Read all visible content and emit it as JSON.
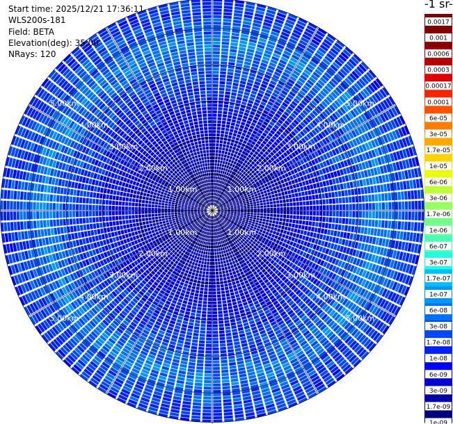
{
  "header": {
    "start_time": "Start time: 2025/12/21 17:36:11",
    "instrument": "WLS200s-181",
    "field": "Field: BETA",
    "elevation": "Elevation(deg): 35.00",
    "nrays": "NRays: 120"
  },
  "colorbar": {
    "title": "-1 sr-",
    "colors": [
      "#00007f",
      "#0000a8",
      "#0000d4",
      "#0000ff",
      "#0020ff",
      "#0048ff",
      "#0070ff",
      "#0098ff",
      "#00c0ff",
      "#1cffe0",
      "#48ffb4",
      "#70ff88",
      "#98ff60",
      "#c0ff38",
      "#e8ff10",
      "#ffd400",
      "#ffa800",
      "#ff7c00",
      "#ff5000",
      "#ff2400",
      "#e40000",
      "#b40000",
      "#8a0000",
      "#7f0000"
    ],
    "labels": [
      "0.0017",
      "0.001",
      "0.0006",
      "0.0003",
      "0.00017",
      "0.0001",
      "6e-05",
      "3e-05",
      "1.7e-05",
      "1e-05",
      "6e-06",
      "3e-06",
      "1.7e-06",
      "1e-06",
      "6e-07",
      "3e-07",
      "1.7e-07",
      "1e-07",
      "6e-08",
      "3e-08",
      "1.7e-08",
      "1e-08",
      "6e-09",
      "3e-09",
      "1.7e-09",
      "1e-09"
    ]
  },
  "chart_data": {
    "type": "heatmap",
    "projection": "polar PPI",
    "nrays": 120,
    "range_rings_km": [
      1,
      2,
      3,
      4,
      5
    ],
    "ring_labels": [
      "1.00km",
      "2.00km",
      "3.00km",
      "4.00km",
      "5.00km"
    ],
    "label_bearings_deg": [
      -54,
      54,
      126,
      234
    ],
    "spokes_every_deg": 30,
    "max_range_km": 5.8,
    "beta_profile": [
      {
        "range_km": 0.2,
        "log10_beta": -8.9
      },
      {
        "range_km": 1.0,
        "log10_beta": -8.7
      },
      {
        "range_km": 2.0,
        "log10_beta": -8.3
      },
      {
        "range_km": 3.0,
        "log10_beta": -7.9
      },
      {
        "range_km": 4.0,
        "log10_beta": -7.6
      },
      {
        "range_km": 4.6,
        "log10_beta": -7.25
      },
      {
        "range_km": 5.0,
        "log10_beta": -7.5
      },
      {
        "range_km": 5.8,
        "log10_beta": -7.8
      }
    ]
  }
}
